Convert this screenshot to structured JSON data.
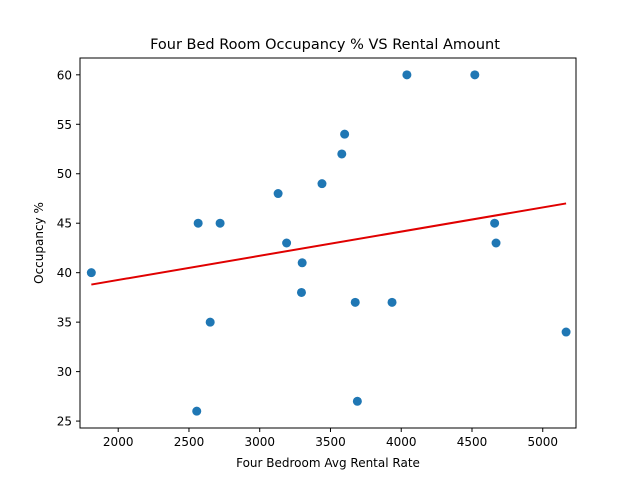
{
  "chart_data": {
    "type": "scatter",
    "title": "Four Bed Room Occupancy % VS Rental Amount",
    "xlabel": "Four Bedroom Avg Rental Rate",
    "ylabel": "Occupancy %",
    "xlim": [
      1730,
      5235
    ],
    "ylim": [
      24.3,
      61.7
    ],
    "xticks": [
      2000,
      2500,
      3000,
      3500,
      4000,
      4500,
      5000
    ],
    "yticks": [
      25,
      30,
      35,
      40,
      45,
      50,
      55,
      60
    ],
    "grid": false,
    "point_color": "#1f77b4",
    "line_color": "#e00000",
    "points": [
      {
        "x": 1810,
        "y": 40
      },
      {
        "x": 2555,
        "y": 26
      },
      {
        "x": 2565,
        "y": 45
      },
      {
        "x": 2650,
        "y": 35
      },
      {
        "x": 2720,
        "y": 45
      },
      {
        "x": 3130,
        "y": 48
      },
      {
        "x": 3190,
        "y": 43
      },
      {
        "x": 3295,
        "y": 38
      },
      {
        "x": 3300,
        "y": 41
      },
      {
        "x": 3440,
        "y": 49
      },
      {
        "x": 3580,
        "y": 52
      },
      {
        "x": 3600,
        "y": 54
      },
      {
        "x": 3675,
        "y": 37
      },
      {
        "x": 3690,
        "y": 27
      },
      {
        "x": 3935,
        "y": 37
      },
      {
        "x": 4040,
        "y": 60
      },
      {
        "x": 4520,
        "y": 60
      },
      {
        "x": 4660,
        "y": 45
      },
      {
        "x": 4670,
        "y": 43
      },
      {
        "x": 5165,
        "y": 34
      }
    ],
    "trendline": {
      "x1": 1810,
      "y1": 38.8,
      "x2": 5165,
      "y2": 47.0
    }
  }
}
